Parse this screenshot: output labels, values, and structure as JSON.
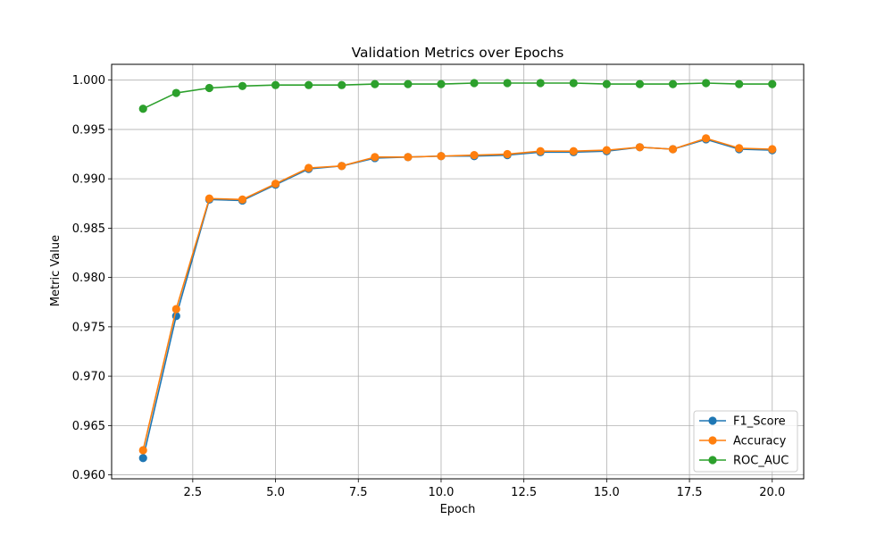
{
  "chart_data": {
    "type": "line",
    "title": "Validation Metrics over Epochs",
    "xlabel": "Epoch",
    "ylabel": "Metric Value",
    "x": [
      1,
      2,
      3,
      4,
      5,
      6,
      7,
      8,
      9,
      10,
      11,
      12,
      13,
      14,
      15,
      16,
      17,
      18,
      19,
      20
    ],
    "xlim": [
      0.05,
      20.95
    ],
    "ylim": [
      0.9596,
      1.0016
    ],
    "xticks": [
      2.5,
      5.0,
      7.5,
      10.0,
      12.5,
      15.0,
      17.5,
      20.0
    ],
    "xtick_labels": [
      "2.5",
      "5.0",
      "7.5",
      "10.0",
      "12.5",
      "15.0",
      "17.5",
      "20.0"
    ],
    "yticks": [
      0.96,
      0.965,
      0.97,
      0.975,
      0.98,
      0.985,
      0.99,
      0.995,
      1.0
    ],
    "ytick_labels": [
      "0.960",
      "0.965",
      "0.970",
      "0.975",
      "0.980",
      "0.985",
      "0.990",
      "0.995",
      "1.000"
    ],
    "grid": true,
    "legend_position": "lower-right",
    "series": [
      {
        "name": "F1_Score",
        "color": "#1f77b4",
        "marker": "circle",
        "values": [
          0.9617,
          0.9761,
          0.9879,
          0.9878,
          0.9894,
          0.991,
          0.9913,
          0.9921,
          0.9922,
          0.9923,
          0.9923,
          0.9924,
          0.9927,
          0.9927,
          0.9928,
          0.9932,
          0.993,
          0.994,
          0.993,
          0.9929
        ]
      },
      {
        "name": "Accuracy",
        "color": "#ff7f0e",
        "marker": "circle",
        "values": [
          0.9625,
          0.9768,
          0.988,
          0.9879,
          0.9895,
          0.9911,
          0.9913,
          0.9922,
          0.9922,
          0.9923,
          0.9924,
          0.9925,
          0.9928,
          0.9928,
          0.9929,
          0.9932,
          0.993,
          0.9941,
          0.9931,
          0.993
        ]
      },
      {
        "name": "ROC_AUC",
        "color": "#2ca02c",
        "marker": "circle",
        "values": [
          0.9971,
          0.9987,
          0.9992,
          0.9994,
          0.9995,
          0.9995,
          0.9995,
          0.9996,
          0.9996,
          0.9996,
          0.9997,
          0.9997,
          0.9997,
          0.9997,
          0.9996,
          0.9996,
          0.9996,
          0.9997,
          0.9996,
          0.9996
        ]
      }
    ]
  }
}
